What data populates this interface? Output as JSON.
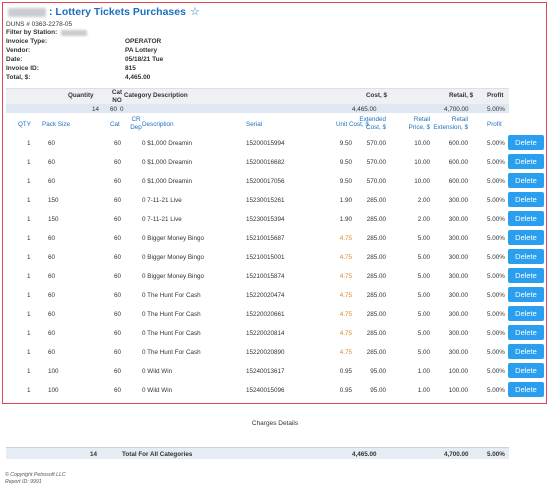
{
  "header": {
    "title": ": Lottery Tickets Purchases",
    "duns": "DUNS # 0363-2278-05",
    "filter_label": "Filter by Station:"
  },
  "meta": [
    {
      "label": "Invoice Type:",
      "value": "OPERATOR"
    },
    {
      "label": "Vendor:",
      "value": "PA Lottery"
    },
    {
      "label": "Date:",
      "value": "05/18/21 Tue"
    },
    {
      "label": "Invoice ID:",
      "value": "815"
    },
    {
      "label": "Total, $:",
      "value": "4,465.00"
    }
  ],
  "summary": {
    "headers": {
      "quantity": "Quantity",
      "cat_no": "Cat NO",
      "category": "Category Description",
      "cost": "Cost, $",
      "retail": "Retail, $",
      "profit": "Profit"
    },
    "row": {
      "quantity": "14",
      "cat_no": "60",
      "cat_extra": "0",
      "cost": "4,465.00",
      "retail": "4,700.00",
      "profit": "5.00%"
    }
  },
  "detail_headers": {
    "qty": "QTY",
    "pack_size": "Pack Size",
    "cat": "Cat",
    "cr_dep": "CR Dep",
    "description": "Description",
    "serial": "Serial",
    "unit_cost": "Unit Cost, $",
    "ext_cost": "Extended Cost, $",
    "retail_price": "Retail Price, $",
    "retail_ext": "Retail Extension, $",
    "profit": "Profit"
  },
  "delete_label": "Delete",
  "rows": [
    {
      "qty": "1",
      "pack": "60",
      "cat": "60",
      "desc": "0 $1,000 Dreamin",
      "serial": "15200015994",
      "unit": "9.50",
      "ext": "570.00",
      "rp": "10.00",
      "re": "600.00",
      "profit": "5.00%"
    },
    {
      "qty": "1",
      "pack": "60",
      "cat": "60",
      "desc": "0 $1,000 Dreamin",
      "serial": "15200016682",
      "unit": "9.50",
      "ext": "570.00",
      "rp": "10.00",
      "re": "600.00",
      "profit": "5.00%"
    },
    {
      "qty": "1",
      "pack": "60",
      "cat": "60",
      "desc": "0 $1,000 Dreamin",
      "serial": "15200017056",
      "unit": "9.50",
      "ext": "570.00",
      "rp": "10.00",
      "re": "600.00",
      "profit": "5.00%"
    },
    {
      "qty": "1",
      "pack": "150",
      "cat": "60",
      "desc": "0 7-11-21 Live",
      "serial": "15230015261",
      "unit": "1.90",
      "ext": "285.00",
      "rp": "2.00",
      "re": "300.00",
      "profit": "5.00%"
    },
    {
      "qty": "1",
      "pack": "150",
      "cat": "60",
      "desc": "0 7-11-21 Live",
      "serial": "15230015394",
      "unit": "1.90",
      "ext": "285.00",
      "rp": "2.00",
      "re": "300.00",
      "profit": "5.00%"
    },
    {
      "qty": "1",
      "pack": "60",
      "cat": "60",
      "desc": "0 Bigger Money Bingo",
      "serial": "15210015687",
      "unit": "4.75",
      "ext": "285.00",
      "rp": "5.00",
      "re": "300.00",
      "profit": "5.00%"
    },
    {
      "qty": "1",
      "pack": "60",
      "cat": "60",
      "desc": "0 Bigger Money Bingo",
      "serial": "15210015001",
      "unit": "4.75",
      "ext": "285.00",
      "rp": "5.00",
      "re": "300.00",
      "profit": "5.00%"
    },
    {
      "qty": "1",
      "pack": "60",
      "cat": "60",
      "desc": "0 Bigger Money Bingo",
      "serial": "15210015874",
      "unit": "4.75",
      "ext": "285.00",
      "rp": "5.00",
      "re": "300.00",
      "profit": "5.00%"
    },
    {
      "qty": "1",
      "pack": "60",
      "cat": "60",
      "desc": "0 The Hunt For Cash",
      "serial": "15220020474",
      "unit": "4.75",
      "ext": "285.00",
      "rp": "5.00",
      "re": "300.00",
      "profit": "5.00%"
    },
    {
      "qty": "1",
      "pack": "60",
      "cat": "60",
      "desc": "0 The Hunt For Cash",
      "serial": "15220020661",
      "unit": "4.75",
      "ext": "285.00",
      "rp": "5.00",
      "re": "300.00",
      "profit": "5.00%"
    },
    {
      "qty": "1",
      "pack": "60",
      "cat": "60",
      "desc": "0 The Hunt For Cash",
      "serial": "15220020814",
      "unit": "4.75",
      "ext": "285.00",
      "rp": "5.00",
      "re": "300.00",
      "profit": "5.00%"
    },
    {
      "qty": "1",
      "pack": "60",
      "cat": "60",
      "desc": "0 The Hunt For Cash",
      "serial": "15220020890",
      "unit": "4.75",
      "ext": "285.00",
      "rp": "5.00",
      "re": "300.00",
      "profit": "5.00%"
    },
    {
      "qty": "1",
      "pack": "100",
      "cat": "60",
      "desc": "0 Wild Win",
      "serial": "15240013617",
      "unit": "0.95",
      "ext": "95.00",
      "rp": "1.00",
      "re": "100.00",
      "profit": "5.00%"
    },
    {
      "qty": "1",
      "pack": "100",
      "cat": "60",
      "desc": "0 Wild Win",
      "serial": "15240015096",
      "unit": "0.95",
      "ext": "95.00",
      "rp": "1.00",
      "re": "100.00",
      "profit": "5.00%"
    }
  ],
  "charges_title": "Charges Details",
  "footer_total": {
    "quantity": "14",
    "label": "Total For All Categories",
    "cost": "4,465.00",
    "retail": "4,700.00",
    "profit": "5.00%"
  },
  "copyright": {
    "line1": "© Copyright Petrosoft LLC",
    "line2": "Report ID: 9991"
  }
}
